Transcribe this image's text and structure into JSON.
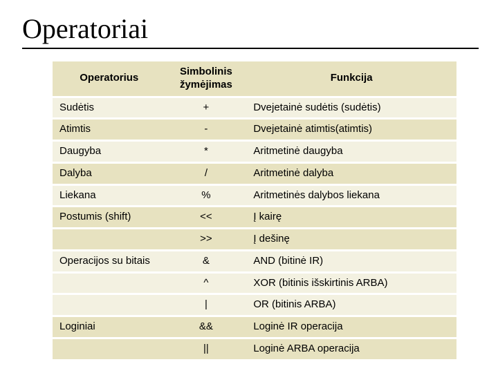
{
  "title": "Operatoriai",
  "table": {
    "header_bg": "#e7e2c0",
    "row_odd_bg": "#f3f1e1",
    "row_even_bg": "#e7e2c0",
    "title_font": "Times New Roman",
    "body_font": "Arial",
    "title_fontsize": 40,
    "header_fontsize": 15,
    "cell_fontsize": 15,
    "columns": [
      "Operatorius",
      "Simbolinis žymėjimas",
      "Funkcija"
    ],
    "col_widths_pct": [
      28,
      20,
      52
    ],
    "rows": [
      {
        "op": "Sudėtis",
        "sym": "+",
        "fun": "Dvejetainė sudėtis (sudėtis)"
      },
      {
        "op": "Atimtis",
        "sym": "-",
        "fun": "Dvejetainė atimtis(atimtis)"
      },
      {
        "op": "Daugyba",
        "sym": "*",
        "fun": "Aritmetinė daugyba"
      },
      {
        "op": "Dalyba",
        "sym": "/",
        "fun": "Aritmetinė dalyba"
      },
      {
        "op": "Liekana",
        "sym": "%",
        "fun": "Aritmetinės dalybos liekana"
      },
      {
        "op": "Postumis (shift)",
        "sym": "<<",
        "fun": "Į kairę"
      },
      {
        "op": "",
        "sym": ">>",
        "fun": "Į dešinę"
      },
      {
        "op": "Operacijos su bitais",
        "sym": "&",
        "fun": "AND (bitinė IR)"
      },
      {
        "op": "",
        "sym": "^",
        "fun": "XOR (bitinis išskirtinis ARBA)"
      },
      {
        "op": "",
        "sym": "|",
        "fun": "OR (bitinis ARBA)"
      },
      {
        "op": "Loginiai",
        "sym": "&&",
        "fun": "Loginė IR operacija"
      },
      {
        "op": "",
        "sym": "||",
        "fun": "Loginė ARBA operacija"
      }
    ]
  }
}
